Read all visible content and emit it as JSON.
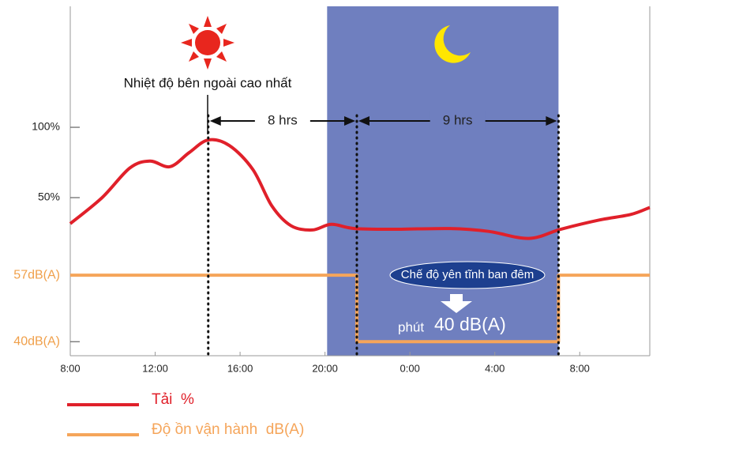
{
  "chart_data": {
    "type": "line",
    "annotation": "Nhiệt độ bên ngoài cao nhất",
    "interval_labels": [
      "8 hrs",
      "9 hrs"
    ],
    "night_mode_label": "Chế độ yên tĩnh ban đêm",
    "night_noise_prefix": "phút",
    "night_noise_label": "40 dB(A)",
    "xlim": [
      8,
      35.3
    ],
    "xticks": [
      {
        "value": 8,
        "label": "8:00"
      },
      {
        "value": 12,
        "label": "12:00"
      },
      {
        "value": 16,
        "label": "16:00"
      },
      {
        "value": 20,
        "label": "20:00"
      },
      {
        "value": 24,
        "label": "0:00"
      },
      {
        "value": 28,
        "label": "4:00"
      },
      {
        "value": 32,
        "label": "8:00"
      }
    ],
    "ylim": [
      -62.4,
      186
    ],
    "yticks": [
      {
        "value": 50,
        "label": "50%"
      },
      {
        "value": 100,
        "label": "100%"
      }
    ],
    "y2lim": [
      36.4,
      125.8
    ],
    "y2ticks": [
      {
        "value": 40,
        "label": "40dB(A)"
      },
      {
        "value": 57,
        "label": "57dB(A)"
      }
    ],
    "night_band": [
      20.1,
      31
    ],
    "markers": [
      14.5,
      21.5,
      31
    ],
    "series": [
      {
        "name": "Tải  %",
        "color": "#e0202a",
        "x": [
          8,
          9.5,
          10.8,
          11.75,
          12.7,
          13.6,
          14.5,
          15.5,
          16.6,
          17.5,
          18.4,
          19.4,
          20.3,
          21.4,
          23.3,
          25.9,
          27.7,
          29.6,
          31.1,
          32.9,
          34.4,
          35.3
        ],
        "values": [
          31.5,
          50,
          71,
          76,
          72,
          82,
          91,
          87,
          70,
          44,
          30,
          27,
          31,
          28,
          27.5,
          28,
          26,
          21,
          27.5,
          34,
          38,
          43
        ]
      },
      {
        "name": "Độ ồn vận hành  dB(A)",
        "color": "#f5a55a",
        "axis": "y2",
        "x": [
          8,
          21.5,
          21.5,
          31,
          31,
          35.3
        ],
        "values": [
          57,
          57,
          40,
          40,
          57,
          57
        ]
      }
    ]
  }
}
